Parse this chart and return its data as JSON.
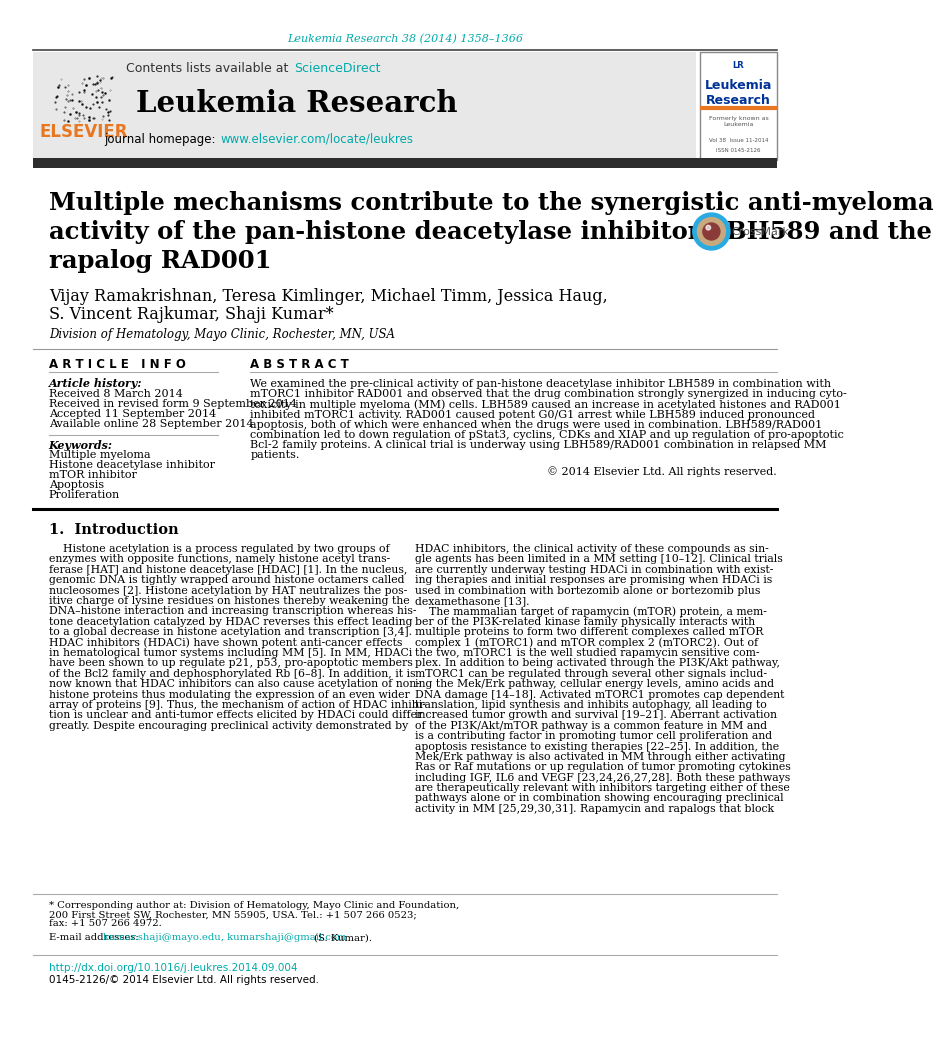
{
  "bg_color": "#ffffff",
  "top_citation": "Leukemia Research 38 (2014) 1358–1366",
  "top_citation_color": "#00AAAA",
  "header_bg": "#e8e8e8",
  "contents_text": "Contents lists available at ",
  "sciencedirect_text": "ScienceDirect",
  "sciencedirect_color": "#00AAAA",
  "journal_name": "Leukemia Research",
  "journal_homepage_text": "journal homepage: ",
  "journal_url": "www.elsevier.com/locate/leukres",
  "journal_url_color": "#00AAAA",
  "divider_color": "#000000",
  "dark_bar_color": "#2d2d2d",
  "article_title_line1": "Multiple mechanisms contribute to the synergistic anti-myeloma",
  "article_title_line2": "activity of the pan-histone deacetylase inhibitor LBH589 and the",
  "article_title_line3": "rapalog RAD001",
  "article_title_color": "#000000",
  "authors": "Vijay Ramakrishnan, Teresa Kimlinger, Michael Timm, Jessica Haug,",
  "authors_line2": "S. Vincent Rajkumar, Shaji Kumar*",
  "authors_color": "#000000",
  "affiliation": "Division of Hematology, Mayo Clinic, Rochester, MN, USA",
  "affiliation_color": "#000000",
  "section_article_info": "A R T I C L E   I N F O",
  "section_abstract": "A B S T R A C T",
  "article_history_label": "Article history:",
  "received": "Received 8 March 2014",
  "revised": "Received in revised form 9 September 2014",
  "accepted": "Accepted 11 September 2014",
  "available": "Available online 28 September 2014",
  "keywords_label": "Keywords:",
  "keyword1": "Multiple myeloma",
  "keyword2": "Histone deacetylase inhibitor",
  "keyword3": "mTOR inhibitor",
  "keyword4": "Apoptosis",
  "keyword5": "Proliferation",
  "abstract_text": "We examined the pre-clinical activity of pan-histone deacetylase inhibitor LBH589 in combination with\nmTORC1 inhibitor RAD001 and observed that the drug combination strongly synergized in inducing cyto-\ntoxicity in multiple myeloma (MM) cells. LBH589 caused an increase in acetylated histones and RAD001\ninhibited mTORC1 activity. RAD001 caused potent G0/G1 arrest while LBH589 induced pronounced\napoptosis, both of which were enhanced when the drugs were used in combination. LBH589/RAD001\ncombination led to down regulation of pStat3, cyclins, CDKs and XIAP and up regulation of pro-apoptotic\nBcl-2 family proteins. A clinical trial is underway using LBH589/RAD001 combination in relapsed MM\npatients.",
  "copyright_text": "© 2014 Elsevier Ltd. All rights reserved.",
  "intro_heading": "1.  Introduction",
  "intro_col1_lines": [
    "    Histone acetylation is a process regulated by two groups of",
    "enzymes with opposite functions, namely histone acetyl trans-",
    "ferase [HAT] and histone deacetylase [HDAC] [1]. In the nucleus,",
    "genomic DNA is tightly wrapped around histone octamers called",
    "nucleosomes [2]. Histone acetylation by HAT neutralizes the pos-",
    "itive charge of lysine residues on histones thereby weakening the",
    "DNA–histone interaction and increasing transcription whereas his-",
    "tone deacetylation catalyzed by HDAC reverses this effect leading",
    "to a global decrease in histone acetylation and transcription [3,4].",
    "HDAC inhibitors (HDACi) have shown potent anti-cancer effects",
    "in hematological tumor systems including MM [5]. In MM, HDACi",
    "have been shown to up regulate p21, p53, pro-apoptotic members",
    "of the Bcl2 family and dephosphorylated Rb [6–8]. In addition, it is",
    "now known that HDAC inhibitors can also cause acetylation of non-",
    "histone proteins thus modulating the expression of an even wider",
    "array of proteins [9]. Thus, the mechanism of action of HDAC inhibi-",
    "tion is unclear and anti-tumor effects elicited by HDACi could differ",
    "greatly. Despite encouraging preclinical activity demonstrated by"
  ],
  "intro_col2_lines": [
    "HDAC inhibitors, the clinical activity of these compounds as sin-",
    "gle agents has been limited in a MM setting [10–12]. Clinical trials",
    "are currently underway testing HDACi in combination with exist-",
    "ing therapies and initial responses are promising when HDACi is",
    "used in combination with bortezomib alone or bortezomib plus",
    "dexamethasone [13].",
    "    The mammalian target of rapamycin (mTOR) protein, a mem-",
    "ber of the PI3K-related kinase family physically interacts with",
    "multiple proteins to form two different complexes called mTOR",
    "complex 1 (mTORC1) and mTOR complex 2 (mTORC2). Out of",
    "the two, mTORC1 is the well studied rapamycin sensitive com-",
    "plex. In addition to being activated through the PI3K/Akt pathway,",
    "mTORC1 can be regulated through several other signals includ-",
    "ing the Mek/Erk pathway, cellular energy levels, amino acids and",
    "DNA damage [14–18]. Activated mTORC1 promotes cap dependent",
    "translation, lipid synthesis and inhibits autophagy, all leading to",
    "increased tumor growth and survival [19–21]. Aberrant activation",
    "of the PI3K/Akt/mTOR pathway is a common feature in MM and",
    "is a contributing factor in promoting tumor cell proliferation and",
    "apoptosis resistance to existing therapies [22–25]. In addition, the",
    "Mek/Erk pathway is also activated in MM through either activating",
    "Ras or Raf mutations or up regulation of tumor promoting cytokines",
    "including IGF, IL6 and VEGF [23,24,26,27,28]. Both these pathways",
    "are therapeutically relevant with inhibitors targeting either of these",
    "pathways alone or in combination showing encouraging preclinical",
    "activity in MM [25,29,30,31]. Rapamycin and rapalogs that block"
  ],
  "footnote_line1": "* Corresponding author at: Division of Hematology, Mayo Clinic and Foundation,",
  "footnote_line2": "200 First Street SW, Rochester, MN 55905, USA. Tel.: +1 507 266 0523;",
  "footnote_line3": "fax: +1 507 266 4972.",
  "footnote_email_label": "E-mail addresses: ",
  "footnote_email_link": "kumar.shaji@mayo.edu, kumarshaji@gmail.com",
  "footnote_email_suffix": " (S. Kumar).",
  "doi_text": "http://dx.doi.org/10.1016/j.leukres.2014.09.004",
  "issn_text": "0145-2126/© 2014 Elsevier Ltd. All rights reserved."
}
